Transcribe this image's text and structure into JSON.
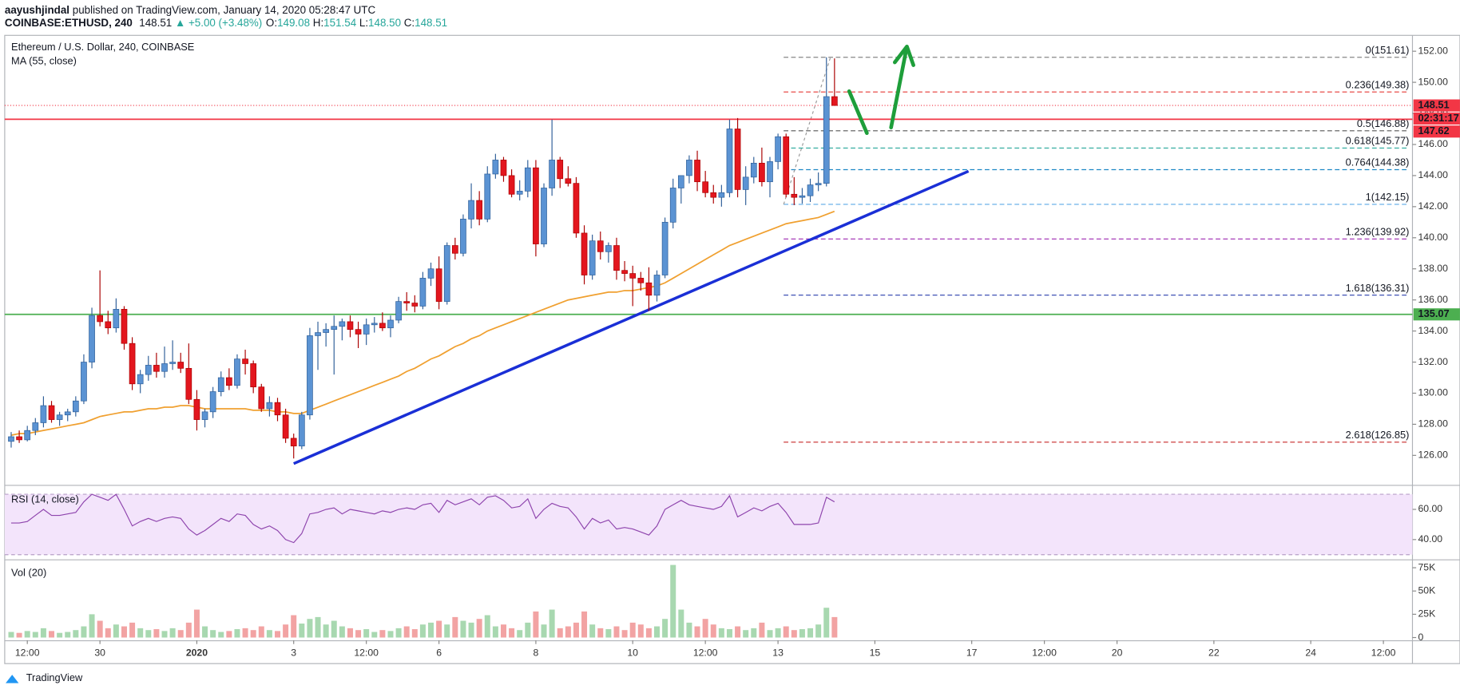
{
  "header": {
    "author": "aayushjindal",
    "published": "published on TradingView.com, January 14, 2020 05:28:47 UTC",
    "symbol": "COINBASE:ETHUSD, 240",
    "last": "148.51",
    "change": "▲ +5.00 (+3.48%)",
    "ohlc": [
      {
        "key": "O:",
        "value": "149.08"
      },
      {
        "key": "H:",
        "value": "151.54"
      },
      {
        "key": "L:",
        "value": "148.50"
      },
      {
        "key": "C:",
        "value": "148.51"
      }
    ]
  },
  "footer": {
    "brand": "TradingView"
  },
  "chart_data": {
    "type": "candlestick",
    "title": "Ethereum / U.S. Dollar, 240, COINBASE",
    "ma_label": "MA (55, close)",
    "up_color": "#5b93d3",
    "down_color": "#e3161e",
    "ma_color": "#f0a030",
    "xlim": [
      -0.8,
      173.6
    ],
    "xticks": [
      {
        "value": 2,
        "label": "12:00"
      },
      {
        "value": 11,
        "label": "30"
      },
      {
        "value": 23,
        "label": "2020"
      },
      {
        "value": 35,
        "label": "3"
      },
      {
        "value": 44,
        "label": "12:00"
      },
      {
        "value": 53,
        "label": "6"
      },
      {
        "value": 65,
        "label": "8"
      },
      {
        "value": 77,
        "label": "10"
      },
      {
        "value": 86,
        "label": "12:00"
      },
      {
        "value": 95,
        "label": "13"
      },
      {
        "value": 107,
        "label": "15"
      },
      {
        "value": 119,
        "label": "17"
      },
      {
        "value": 128,
        "label": "12:00"
      },
      {
        "value": 137,
        "label": "20"
      },
      {
        "value": 149,
        "label": "22"
      },
      {
        "value": 161,
        "label": "24"
      },
      {
        "value": 170,
        "label": "12:00"
      }
    ],
    "ylim": [
      124.1,
      153.02
    ],
    "yticks": [
      {
        "value": 126,
        "label": "126.00"
      },
      {
        "value": 128,
        "label": "128.00"
      },
      {
        "value": 130,
        "label": "130.00"
      },
      {
        "value": 132,
        "label": "132.00"
      },
      {
        "value": 134,
        "label": "134.00"
      },
      {
        "value": 136,
        "label": "136.00"
      },
      {
        "value": 138,
        "label": "138.00"
      },
      {
        "value": 140,
        "label": "140.00"
      },
      {
        "value": 142,
        "label": "142.00"
      },
      {
        "value": 144,
        "label": "144.00"
      },
      {
        "value": 146,
        "label": "146.00"
      },
      {
        "value": 148,
        "label": "148.00"
      },
      {
        "value": 150,
        "label": "150.00"
      },
      {
        "value": 152,
        "label": "152.00"
      }
    ],
    "candles": [
      [
        126.9,
        127.5,
        126.5,
        127.2
      ],
      [
        127.2,
        127.6,
        126.8,
        127.0
      ],
      [
        127.0,
        127.9,
        126.9,
        127.6
      ],
      [
        127.6,
        128.4,
        127.3,
        128.1
      ],
      [
        128.1,
        129.8,
        127.8,
        129.2
      ],
      [
        129.2,
        129.5,
        128.1,
        128.3
      ],
      [
        128.3,
        128.8,
        127.9,
        128.6
      ],
      [
        128.6,
        129.0,
        128.2,
        128.8
      ],
      [
        128.8,
        129.8,
        128.5,
        129.5
      ],
      [
        129.5,
        132.5,
        129.3,
        132.0
      ],
      [
        132.0,
        135.5,
        131.6,
        135.0
      ],
      [
        135.0,
        137.9,
        134.3,
        134.6
      ],
      [
        134.6,
        135.3,
        133.8,
        134.2
      ],
      [
        134.2,
        136.1,
        133.9,
        135.4
      ],
      [
        135.4,
        135.6,
        132.8,
        133.2
      ],
      [
        133.2,
        133.6,
        130.2,
        130.6
      ],
      [
        130.6,
        131.5,
        130.0,
        131.2
      ],
      [
        131.2,
        132.4,
        130.8,
        131.8
      ],
      [
        131.8,
        132.6,
        131.0,
        131.4
      ],
      [
        131.4,
        133.0,
        131.0,
        131.9
      ],
      [
        131.9,
        133.4,
        131.5,
        132.0
      ],
      [
        132.0,
        132.6,
        131.3,
        131.6
      ],
      [
        131.6,
        133.2,
        129.3,
        129.6
      ],
      [
        129.6,
        130.2,
        127.6,
        128.3
      ],
      [
        128.3,
        129.0,
        127.8,
        128.8
      ],
      [
        128.8,
        130.4,
        128.4,
        130.1
      ],
      [
        130.1,
        131.4,
        129.8,
        131.0
      ],
      [
        131.0,
        131.6,
        130.2,
        130.5
      ],
      [
        130.5,
        132.5,
        130.3,
        132.2
      ],
      [
        132.2,
        132.8,
        131.2,
        131.9
      ],
      [
        131.9,
        132.1,
        130.0,
        130.4
      ],
      [
        130.4,
        130.6,
        128.8,
        129.0
      ],
      [
        129.0,
        129.8,
        128.5,
        129.4
      ],
      [
        129.4,
        129.7,
        128.2,
        128.6
      ],
      [
        128.6,
        129.0,
        126.8,
        127.1
      ],
      [
        127.1,
        127.4,
        125.8,
        126.6
      ],
      [
        126.6,
        128.8,
        126.4,
        128.6
      ],
      [
        128.6,
        134.2,
        128.3,
        133.7
      ],
      [
        133.7,
        134.6,
        131.5,
        133.9
      ],
      [
        133.9,
        134.5,
        133.0,
        134.1
      ],
      [
        134.1,
        135.0,
        131.2,
        134.3
      ],
      [
        134.3,
        134.8,
        133.4,
        134.6
      ],
      [
        134.6,
        135.0,
        133.6,
        134.1
      ],
      [
        134.1,
        134.6,
        132.9,
        133.8
      ],
      [
        133.8,
        134.8,
        133.1,
        134.4
      ],
      [
        134.4,
        134.9,
        133.9,
        134.5
      ],
      [
        134.5,
        135.2,
        134.0,
        134.2
      ],
      [
        134.2,
        135.0,
        133.6,
        134.7
      ],
      [
        134.7,
        136.2,
        134.5,
        135.9
      ],
      [
        135.9,
        136.5,
        135.3,
        135.8
      ],
      [
        135.8,
        136.3,
        135.2,
        135.6
      ],
      [
        135.6,
        137.8,
        135.4,
        137.4
      ],
      [
        137.4,
        138.4,
        136.9,
        138.0
      ],
      [
        138.0,
        138.8,
        135.4,
        135.9
      ],
      [
        135.9,
        139.7,
        135.7,
        139.5
      ],
      [
        139.5,
        140.0,
        138.6,
        139.0
      ],
      [
        139.0,
        141.5,
        138.8,
        141.2
      ],
      [
        141.2,
        143.5,
        140.6,
        142.4
      ],
      [
        142.4,
        143.0,
        140.8,
        141.2
      ],
      [
        141.2,
        144.6,
        141.0,
        144.1
      ],
      [
        144.1,
        145.4,
        143.8,
        145.0
      ],
      [
        145.0,
        145.2,
        143.6,
        144.0
      ],
      [
        144.0,
        144.4,
        142.6,
        142.8
      ],
      [
        142.8,
        143.7,
        142.4,
        143.0
      ],
      [
        143.0,
        145.0,
        142.6,
        144.5
      ],
      [
        144.5,
        145.0,
        138.8,
        139.6
      ],
      [
        139.6,
        143.5,
        139.4,
        143.2
      ],
      [
        143.2,
        147.6,
        142.7,
        145.0
      ],
      [
        145.0,
        145.2,
        143.2,
        143.8
      ],
      [
        143.8,
        144.6,
        143.3,
        143.5
      ],
      [
        143.5,
        143.9,
        140.0,
        140.3
      ],
      [
        140.3,
        140.8,
        137.0,
        137.6
      ],
      [
        137.6,
        140.2,
        137.3,
        139.8
      ],
      [
        139.8,
        140.4,
        138.6,
        139.1
      ],
      [
        139.1,
        139.7,
        138.4,
        139.5
      ],
      [
        139.5,
        140.0,
        137.3,
        137.9
      ],
      [
        137.9,
        138.5,
        137.2,
        137.7
      ],
      [
        137.7,
        138.2,
        135.6,
        137.4
      ],
      [
        137.4,
        137.8,
        136.6,
        137.1
      ],
      [
        137.1,
        138.1,
        135.3,
        136.3
      ],
      [
        136.3,
        137.9,
        135.9,
        137.6
      ],
      [
        137.6,
        141.3,
        137.4,
        141.0
      ],
      [
        141.0,
        143.8,
        140.6,
        143.2
      ],
      [
        143.2,
        144.0,
        142.2,
        144.0
      ],
      [
        144.0,
        145.3,
        143.5,
        145.0
      ],
      [
        145.0,
        145.6,
        143.0,
        143.6
      ],
      [
        143.6,
        144.3,
        142.6,
        142.9
      ],
      [
        142.9,
        143.4,
        142.2,
        142.6
      ],
      [
        142.6,
        143.4,
        142.0,
        142.9
      ],
      [
        142.9,
        147.6,
        142.6,
        147.0
      ],
      [
        147.0,
        147.7,
        142.6,
        143.1
      ],
      [
        143.1,
        144.6,
        142.1,
        143.9
      ],
      [
        143.9,
        145.2,
        143.5,
        144.8
      ],
      [
        144.8,
        145.8,
        143.3,
        143.6
      ],
      [
        143.6,
        145.2,
        142.6,
        144.9
      ],
      [
        144.9,
        146.7,
        144.4,
        146.5
      ],
      [
        146.5,
        146.7,
        142.6,
        142.8
      ],
      [
        142.8,
        143.9,
        142.1,
        142.6
      ],
      [
        142.6,
        143.2,
        142.2,
        142.7
      ],
      [
        142.7,
        143.8,
        142.3,
        143.4
      ],
      [
        143.4,
        144.2,
        143.0,
        143.5
      ],
      [
        143.5,
        151.61,
        143.3,
        149.08
      ],
      [
        149.08,
        151.54,
        148.5,
        148.51
      ]
    ],
    "ma": [
      127.3,
      127.4,
      127.4,
      127.5,
      127.6,
      127.7,
      127.8,
      127.9,
      128.0,
      128.1,
      128.3,
      128.5,
      128.6,
      128.7,
      128.8,
      128.8,
      128.9,
      129.0,
      129.0,
      129.1,
      129.1,
      129.2,
      129.2,
      129.1,
      129.0,
      129.0,
      129.0,
      129.0,
      129.0,
      129.0,
      128.9,
      128.9,
      128.9,
      128.8,
      128.8,
      128.7,
      128.7,
      128.9,
      129.1,
      129.3,
      129.5,
      129.7,
      129.9,
      130.1,
      130.3,
      130.5,
      130.7,
      130.9,
      131.1,
      131.4,
      131.6,
      131.9,
      132.2,
      132.4,
      132.7,
      133.0,
      133.2,
      133.5,
      133.7,
      134.0,
      134.2,
      134.4,
      134.6,
      134.8,
      135.0,
      135.2,
      135.4,
      135.6,
      135.8,
      136.0,
      136.1,
      136.2,
      136.3,
      136.4,
      136.5,
      136.5,
      136.6,
      136.6,
      136.7,
      136.8,
      136.9,
      137.1,
      137.4,
      137.7,
      138.0,
      138.3,
      138.6,
      138.9,
      139.2,
      139.5,
      139.7,
      139.9,
      140.1,
      140.3,
      140.5,
      140.7,
      140.9,
      141.0,
      141.1,
      141.2,
      141.3,
      141.5,
      141.7
    ],
    "last_price": {
      "value": 148.51,
      "label": "148.51",
      "countdown": "02:31:17",
      "color": "#f23645"
    },
    "levels": [
      {
        "value": 147.62,
        "label": "147.62",
        "color": "#f23645"
      },
      {
        "value": 135.07,
        "label": "135.07",
        "color": "#4caf50"
      }
    ],
    "trendline": {
      "x": [
        35,
        118.6
      ],
      "y": [
        125.47,
        144.28
      ],
      "color": "#1a2fd6"
    },
    "fib_x": [
      95.7,
      173.2
    ],
    "fib": [
      {
        "label": "0(151.61)",
        "value": 151.61,
        "color": "#888888"
      },
      {
        "label": "0.236(149.38)",
        "value": 149.38,
        "color": "#e53935"
      },
      {
        "label": "0.5(146.88)",
        "value": 146.88,
        "color": "#555555"
      },
      {
        "label": "0.618(145.77)",
        "value": 145.77,
        "color": "#26a69a"
      },
      {
        "label": "0.764(144.38)",
        "value": 144.38,
        "color": "#1e88c5"
      },
      {
        "label": "1(142.15)",
        "value": 142.15,
        "color": "#5aa9e6"
      },
      {
        "label": "1.236(139.92)",
        "value": 139.92,
        "color": "#9c27b0"
      },
      {
        "label": "1.618(136.31)",
        "value": 136.31,
        "color": "#3f51b5"
      },
      {
        "label": "2.618(126.85)",
        "value": 126.85,
        "color": "#c62828"
      }
    ],
    "rsi": {
      "label": "RSI (14, close)",
      "color": "#8e44ad",
      "ylim": [
        26.9,
        75.6
      ],
      "yticks": [
        {
          "value": 40,
          "label": "40.00"
        },
        {
          "value": 60,
          "label": "60.00"
        }
      ],
      "bands": [
        30,
        70
      ],
      "values": [
        51,
        51,
        52,
        56,
        60,
        56,
        56,
        57,
        58,
        65,
        70,
        68,
        66,
        70,
        60,
        49,
        52,
        54,
        52,
        54,
        55,
        54,
        47,
        43,
        46,
        50,
        54,
        52,
        57,
        56,
        50,
        47,
        49,
        46,
        40,
        38,
        44,
        57,
        58,
        60,
        61,
        57,
        60,
        59,
        58,
        57,
        59,
        58,
        60,
        61,
        60,
        63,
        64,
        58,
        66,
        63,
        65,
        67,
        63,
        68,
        69,
        66,
        61,
        62,
        67,
        54,
        60,
        64,
        62,
        61,
        55,
        47,
        54,
        51,
        53,
        47,
        48,
        47,
        45,
        43,
        49,
        60,
        63,
        66,
        63,
        62,
        61,
        60,
        62,
        69,
        55,
        58,
        61,
        59,
        62,
        64,
        58,
        50,
        50,
        50,
        51,
        68,
        65
      ]
    },
    "volume": {
      "label": "Vol (20)",
      "up_color": "#a8d8b0",
      "down_color": "#f2a3a3",
      "ylim": [
        -3000,
        83000
      ],
      "yticks": [
        {
          "value": 0,
          "label": "0"
        },
        {
          "value": 25000,
          "label": "25K"
        },
        {
          "value": 50000,
          "label": "50K"
        },
        {
          "value": 75000,
          "label": "75K"
        }
      ],
      "values": [
        6000,
        5000,
        7000,
        6000,
        10000,
        7000,
        5000,
        6000,
        8000,
        12000,
        25000,
        18000,
        10000,
        14000,
        12000,
        16000,
        10000,
        8000,
        9000,
        7000,
        10000,
        8000,
        16000,
        30000,
        12000,
        8000,
        6000,
        7000,
        9000,
        10000,
        8000,
        12000,
        8000,
        7000,
        14000,
        24000,
        15000,
        20000,
        22000,
        14000,
        18000,
        12000,
        10000,
        8000,
        9000,
        6000,
        8000,
        7000,
        10000,
        12000,
        9000,
        14000,
        16000,
        18000,
        14000,
        22000,
        18000,
        16000,
        20000,
        24000,
        12000,
        14000,
        10000,
        8000,
        16000,
        28000,
        14000,
        30000,
        10000,
        12000,
        16000,
        28000,
        14000,
        10000,
        9000,
        12000,
        8000,
        16000,
        14000,
        10000,
        12000,
        20000,
        78000,
        30000,
        16000,
        12000,
        20000,
        14000,
        10000,
        9000,
        12000,
        8000,
        10000,
        16000,
        8000,
        10000,
        12000,
        8000,
        9000,
        10000,
        14000,
        32000,
        22000
      ]
    }
  }
}
